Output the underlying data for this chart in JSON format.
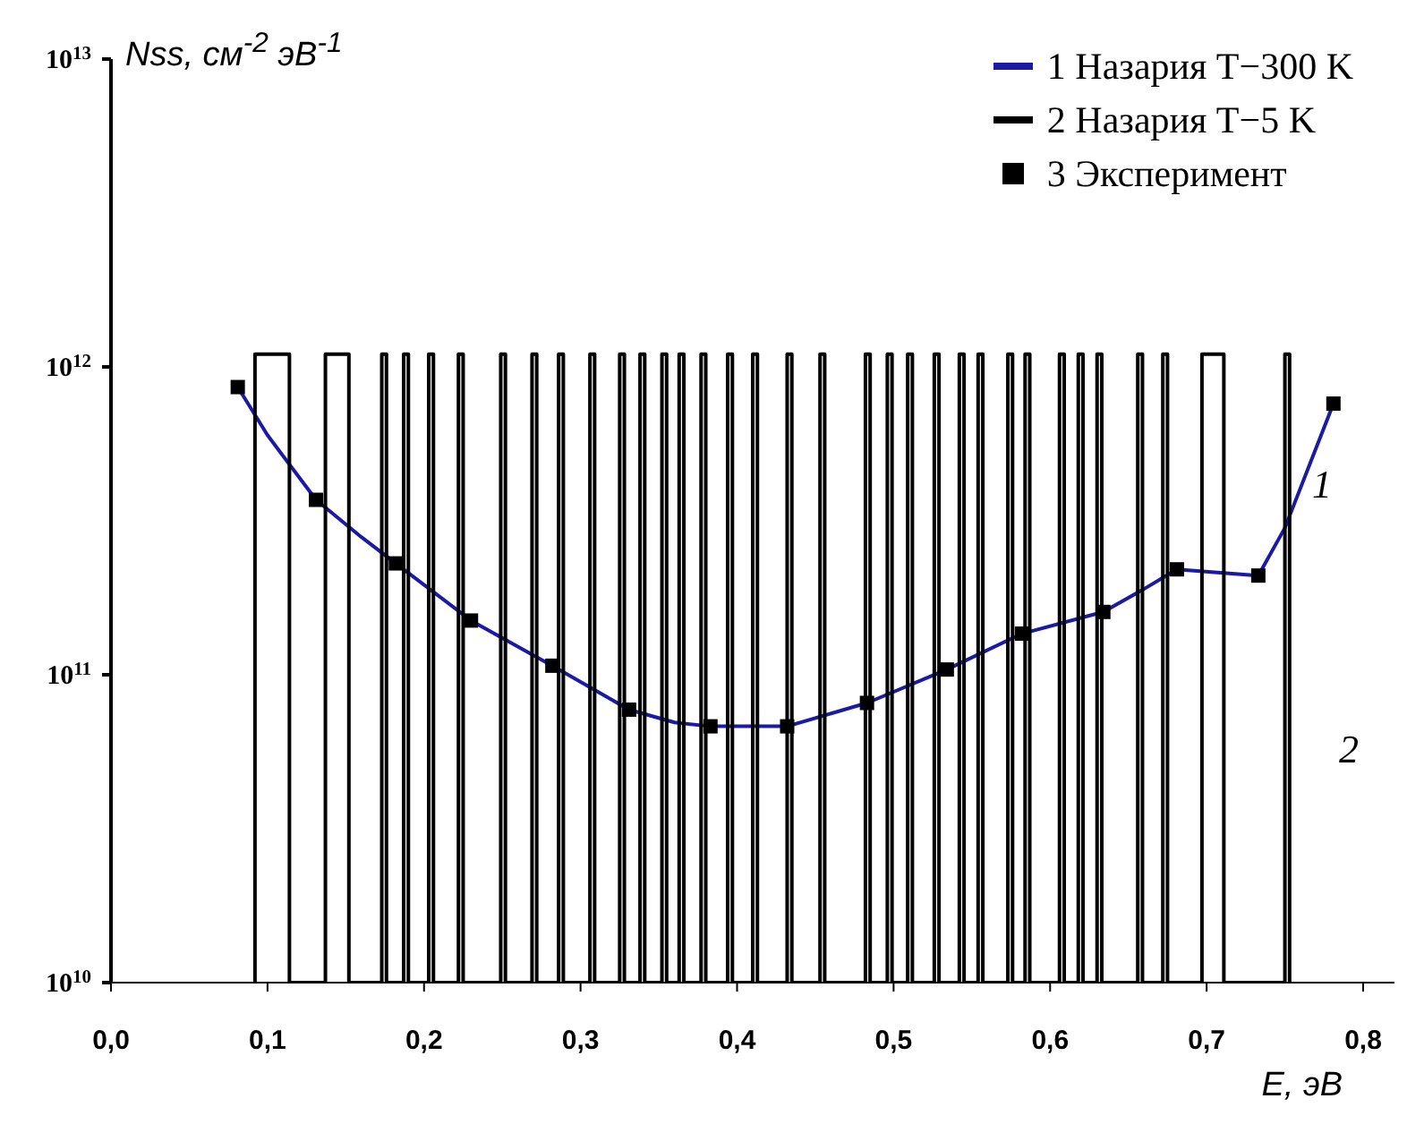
{
  "chart_data": {
    "type": "line",
    "log": "y",
    "xlim": [
      0,
      0.82
    ],
    "ylim": [
      10000000000.0,
      10000000000000.0
    ],
    "xticks": [
      {
        "value": 0,
        "label": "0,0"
      },
      {
        "value": 0.1,
        "label": "0,1"
      },
      {
        "value": 0.2,
        "label": "0,2"
      },
      {
        "value": 0.3,
        "label": "0,3"
      },
      {
        "value": 0.4,
        "label": "0,4"
      },
      {
        "value": 0.5,
        "label": "0,5"
      },
      {
        "value": 0.6,
        "label": "0,6"
      },
      {
        "value": 0.7,
        "label": "0,7"
      },
      {
        "value": 0.8,
        "label": "0,8"
      }
    ],
    "yticks": [
      {
        "value": 10000000000.0,
        "label": "10$^{10}$"
      },
      {
        "value": 100000000000.0,
        "label": "10$^{11}$"
      },
      {
        "value": 1000000000000.0,
        "label": "10$^{12}$"
      },
      {
        "value": 10000000000000.0,
        "label": "10$^{13}$"
      }
    ],
    "xlabel": "E, эВ",
    "ylabel": "Nss, см$^{-2}$ эВ$^{-1}$",
    "grid": false,
    "legend": "top right",
    "annotations": [
      "1",
      "2"
    ],
    "series": [
      {
        "name": "1 Назария T−300 K",
        "color": "#1a1aa6",
        "marker": "none",
        "x": [
          0.081,
          0.1,
          0.131,
          0.16,
          0.182,
          0.23,
          0.282,
          0.331,
          0.36,
          0.383,
          0.432,
          0.483,
          0.534,
          0.582,
          0.634,
          0.66,
          0.681,
          0.733,
          0.75,
          0.781
        ],
        "values": [
          860000000000,
          600000000000,
          370000000000,
          280000000000,
          230000000000,
          150000000000,
          107000000000,
          77000000000,
          70000000000,
          68000000000,
          68000000000,
          81000000000,
          104000000000,
          136000000000,
          160000000000,
          190000000000,
          220000000000,
          210000000000,
          300000000000,
          760000000000
        ]
      },
      {
        "name": "2 Назария T−5 K",
        "color": "#000000",
        "marker": "none",
        "x": [
          0.092,
          0.092,
          0.114,
          0.114,
          0.137,
          0.137,
          0.152,
          0.152,
          0.173,
          0.173,
          0.176,
          0.176,
          0.187,
          0.187,
          0.19,
          0.19,
          0.203,
          0.203,
          0.206,
          0.206,
          0.222,
          0.222,
          0.225,
          0.225,
          0.249,
          0.249,
          0.252,
          0.252,
          0.269,
          0.269,
          0.272,
          0.272,
          0.286,
          0.286,
          0.289,
          0.289,
          0.306,
          0.306,
          0.309,
          0.309,
          0.325,
          0.325,
          0.328,
          0.328,
          0.338,
          0.338,
          0.341,
          0.341,
          0.352,
          0.352,
          0.355,
          0.355,
          0.363,
          0.363,
          0.366,
          0.366,
          0.377,
          0.377,
          0.38,
          0.38,
          0.394,
          0.394,
          0.397,
          0.397,
          0.41,
          0.41,
          0.413,
          0.413,
          0.432,
          0.432,
          0.435,
          0.435,
          0.453,
          0.453,
          0.456,
          0.456,
          0.482,
          0.482,
          0.485,
          0.485,
          0.496,
          0.496,
          0.499,
          0.499,
          0.509,
          0.509,
          0.512,
          0.512,
          0.526,
          0.526,
          0.529,
          0.529,
          0.542,
          0.542,
          0.545,
          0.545,
          0.554,
          0.554,
          0.557,
          0.557,
          0.573,
          0.573,
          0.576,
          0.576,
          0.584,
          0.584,
          0.587,
          0.587,
          0.606,
          0.606,
          0.609,
          0.609,
          0.618,
          0.618,
          0.621,
          0.621,
          0.63,
          0.63,
          0.633,
          0.633,
          0.656,
          0.656,
          0.659,
          0.659,
          0.672,
          0.672,
          0.675,
          0.675,
          0.697,
          0.697,
          0.711,
          0.711,
          0.75,
          0.75,
          0.753,
          0.753
        ],
        "values": [
          10000000000.0,
          1100000000000.0,
          1100000000000.0,
          10000000000.0,
          10000000000.0,
          1100000000000.0,
          1100000000000.0,
          10000000000.0,
          10000000000.0,
          1100000000000.0,
          1100000000000.0,
          10000000000.0,
          10000000000.0,
          1100000000000.0,
          1100000000000.0,
          10000000000.0,
          10000000000.0,
          1100000000000.0,
          1100000000000.0,
          10000000000.0,
          10000000000.0,
          1100000000000.0,
          1100000000000.0,
          10000000000.0,
          10000000000.0,
          1100000000000.0,
          1100000000000.0,
          10000000000.0,
          10000000000.0,
          1100000000000.0,
          1100000000000.0,
          10000000000.0,
          10000000000.0,
          1100000000000.0,
          1100000000000.0,
          10000000000.0,
          10000000000.0,
          1100000000000.0,
          1100000000000.0,
          10000000000.0,
          10000000000.0,
          1100000000000.0,
          1100000000000.0,
          10000000000.0,
          10000000000.0,
          1100000000000.0,
          1100000000000.0,
          10000000000.0,
          10000000000.0,
          1100000000000.0,
          1100000000000.0,
          10000000000.0,
          10000000000.0,
          1100000000000.0,
          1100000000000.0,
          10000000000.0,
          10000000000.0,
          1100000000000.0,
          1100000000000.0,
          10000000000.0,
          10000000000.0,
          1100000000000.0,
          1100000000000.0,
          10000000000.0,
          10000000000.0,
          1100000000000.0,
          1100000000000.0,
          10000000000.0,
          10000000000.0,
          1100000000000.0,
          1100000000000.0,
          10000000000.0,
          10000000000.0,
          1100000000000.0,
          1100000000000.0,
          10000000000.0,
          10000000000.0,
          1100000000000.0,
          1100000000000.0,
          10000000000.0,
          10000000000.0,
          1100000000000.0,
          1100000000000.0,
          10000000000.0,
          10000000000.0,
          1100000000000.0,
          1100000000000.0,
          10000000000.0,
          10000000000.0,
          1100000000000.0,
          1100000000000.0,
          10000000000.0,
          10000000000.0,
          1100000000000.0,
          1100000000000.0,
          10000000000.0,
          10000000000.0,
          1100000000000.0,
          1100000000000.0,
          10000000000.0,
          10000000000.0,
          1100000000000.0,
          1100000000000.0,
          10000000000.0,
          10000000000.0,
          1100000000000.0,
          1100000000000.0,
          10000000000.0,
          10000000000.0,
          1100000000000.0,
          1100000000000.0,
          10000000000.0,
          10000000000.0,
          1100000000000.0,
          1100000000000.0,
          10000000000.0,
          10000000000.0,
          1100000000000.0,
          1100000000000.0,
          10000000000.0,
          10000000000.0,
          1100000000000.0,
          1100000000000.0,
          10000000000.0,
          10000000000.0,
          1100000000000.0,
          1100000000000.0,
          10000000000.0,
          10000000000.0,
          1100000000000.0,
          1100000000000.0,
          10000000000.0,
          10000000000.0,
          1100000000000.0,
          1100000000000.0,
          10000000000.0
        ]
      },
      {
        "name": "3 Эксперимент",
        "type": "scatter",
        "color": "#000000",
        "marker": "square",
        "x": [
          0.081,
          0.131,
          0.182,
          0.23,
          0.282,
          0.331,
          0.383,
          0.432,
          0.483,
          0.534,
          0.582,
          0.634,
          0.681,
          0.733,
          0.781
        ],
        "values": [
          860000000000,
          370000000000,
          230000000000,
          150000000000,
          107000000000,
          77000000000,
          68000000000,
          68000000000,
          81000000000,
          104000000000,
          136000000000,
          160000000000,
          220000000000,
          210000000000,
          760000000000
        ]
      }
    ]
  }
}
